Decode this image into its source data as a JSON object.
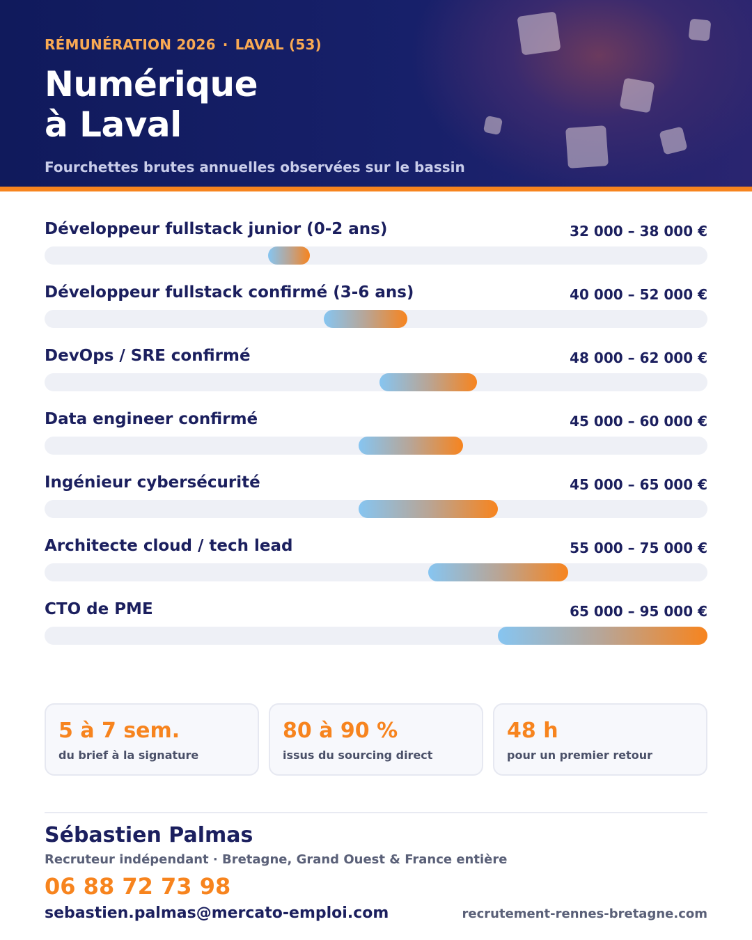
{
  "header": {
    "kicker_left": "RÉMUNÉRATION 2026",
    "kicker_sep": "·",
    "kicker_right": "LAVAL (53)",
    "title_line1": "Numérique",
    "title_line2": "à Laval",
    "subtitle": "Fourchettes brutes annuelles observées sur le bassin"
  },
  "colors": {
    "navy": "#1b1f5e",
    "orange": "#f7841e",
    "light_blue": "#86c5f1",
    "track": "#eef0f6"
  },
  "chart_data": {
    "type": "bar",
    "orientation": "horizontal-range",
    "xlim": [
      0,
      95000
    ],
    "categories": [
      "Développeur fullstack junior (0-2 ans)",
      "Développeur fullstack confirmé (3-6 ans)",
      "DevOps / SRE confirmé",
      "Data engineer confirmé",
      "Ingénieur cybersécurité",
      "Architecte cloud / tech lead",
      "CTO de PME"
    ],
    "ranges": [
      [
        32000,
        38000
      ],
      [
        40000,
        52000
      ],
      [
        48000,
        62000
      ],
      [
        45000,
        60000
      ],
      [
        45000,
        65000
      ],
      [
        55000,
        75000
      ],
      [
        65000,
        95000
      ]
    ],
    "range_labels": [
      "32 000 – 38 000 €",
      "40 000 – 52 000 €",
      "48 000 – 62 000 €",
      "45 000 – 60 000 €",
      "45 000 – 65 000 €",
      "55 000 – 75 000 €",
      "65 000 – 95 000 €"
    ]
  },
  "stats": [
    {
      "value": "5 à 7 sem.",
      "label": "du brief à la signature"
    },
    {
      "value": "80 à 90 %",
      "label": "issus du sourcing direct"
    },
    {
      "value": "48 h",
      "label": "pour un premier retour"
    }
  ],
  "contact": {
    "name": "Sébastien Palmas",
    "role": "Recruteur indépendant · Bretagne, Grand Ouest & France entière",
    "phone": "06 88 72 73 98",
    "email": "sebastien.palmas@mercato-emploi.com",
    "website": "recrutement-rennes-bretagne.com"
  }
}
